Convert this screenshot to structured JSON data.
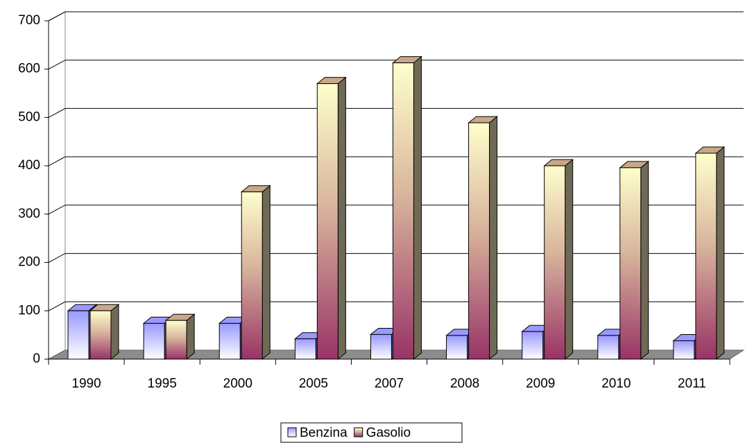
{
  "chart_data": {
    "type": "bar3d",
    "categories": [
      "1990",
      "1995",
      "2000",
      "2005",
      "2007",
      "2008",
      "2009",
      "2010",
      "2011"
    ],
    "series": [
      {
        "name": "Benzina",
        "color": "#9999ff",
        "values": [
          100,
          74,
          74,
          42,
          51,
          49,
          57,
          49,
          38
        ]
      },
      {
        "name": "Gasolio",
        "color": "#993366",
        "values": [
          100,
          80,
          346,
          570,
          613,
          489,
          400,
          396,
          426
        ]
      }
    ],
    "ylim": [
      0,
      700
    ],
    "yticks": [
      0,
      100,
      200,
      300,
      400,
      500,
      600,
      700
    ],
    "grid": true,
    "legend": "bottom"
  }
}
